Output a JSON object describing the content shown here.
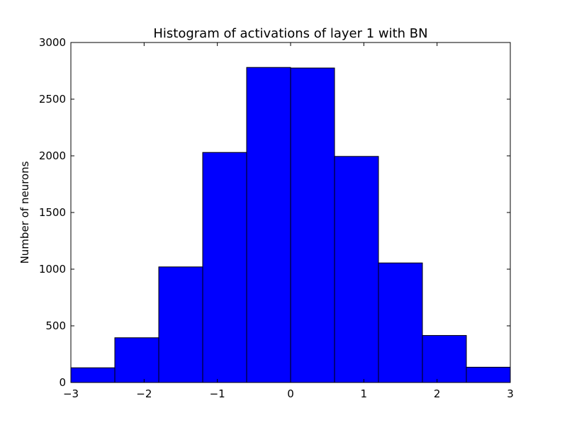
{
  "chart_data": {
    "type": "bar",
    "title": "Histogram of activations of layer 1  with BN",
    "xlabel": "",
    "ylabel": "Number of neurons",
    "xlim": [
      -3,
      3
    ],
    "ylim": [
      0,
      3000
    ],
    "bins": [
      {
        "x0": -3.0,
        "x1": -2.4,
        "value": 130
      },
      {
        "x0": -2.4,
        "x1": -1.8,
        "value": 395
      },
      {
        "x0": -1.8,
        "x1": -1.2,
        "value": 1020
      },
      {
        "x0": -1.2,
        "x1": -0.6,
        "value": 2030
      },
      {
        "x0": -0.6,
        "x1": 0.0,
        "value": 2780
      },
      {
        "x0": 0.0,
        "x1": 0.6,
        "value": 2775
      },
      {
        "x0": 0.6,
        "x1": 1.2,
        "value": 1995
      },
      {
        "x0": 1.2,
        "x1": 1.8,
        "value": 1055
      },
      {
        "x0": 1.8,
        "x1": 2.4,
        "value": 415
      },
      {
        "x0": 2.4,
        "x1": 3.0,
        "value": 135
      }
    ],
    "xticks": [
      {
        "value": -3,
        "label": "−3"
      },
      {
        "value": -2,
        "label": "−2"
      },
      {
        "value": -1,
        "label": "−1"
      },
      {
        "value": 0,
        "label": "0"
      },
      {
        "value": 1,
        "label": "1"
      },
      {
        "value": 2,
        "label": "2"
      },
      {
        "value": 3,
        "label": "3"
      }
    ],
    "yticks": [
      {
        "value": 0,
        "label": "0"
      },
      {
        "value": 500,
        "label": "500"
      },
      {
        "value": 1000,
        "label": "1000"
      },
      {
        "value": 1500,
        "label": "1500"
      },
      {
        "value": 2000,
        "label": "2000"
      },
      {
        "value": 2500,
        "label": "2500"
      },
      {
        "value": 3000,
        "label": "3000"
      }
    ],
    "bar_color": "#0000ff",
    "edge_color": "#000000",
    "grid": false,
    "legend": "none"
  }
}
